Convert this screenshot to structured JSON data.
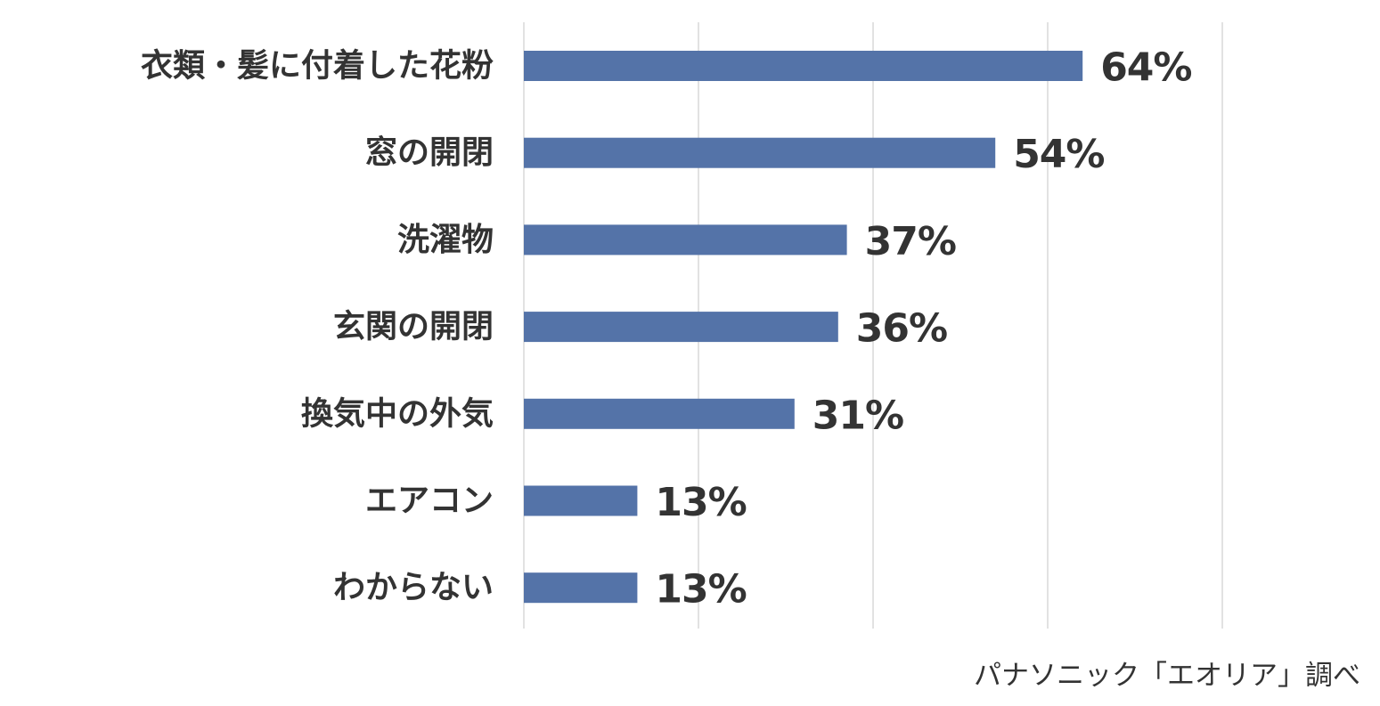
{
  "chart_data": {
    "type": "bar",
    "orientation": "horizontal",
    "categories": [
      "衣類・髪に付着した花粉",
      "窓の開閉",
      "洗濯物",
      "玄関の開閉",
      "換気中の外気",
      "エアコン",
      "わからない"
    ],
    "values": [
      64,
      54,
      37,
      36,
      31,
      13,
      13
    ],
    "value_labels": [
      "64%",
      "54%",
      "37%",
      "36%",
      "31%",
      "13%",
      "13%"
    ],
    "xlim": [
      0,
      80
    ],
    "grid": true,
    "axis_tick_labels_visible": false,
    "bar_color": "#5473a8",
    "grid_color": "#d9d9d9",
    "text_color": "#333333"
  },
  "source_note": "パナソニック「エオリア」調べ"
}
